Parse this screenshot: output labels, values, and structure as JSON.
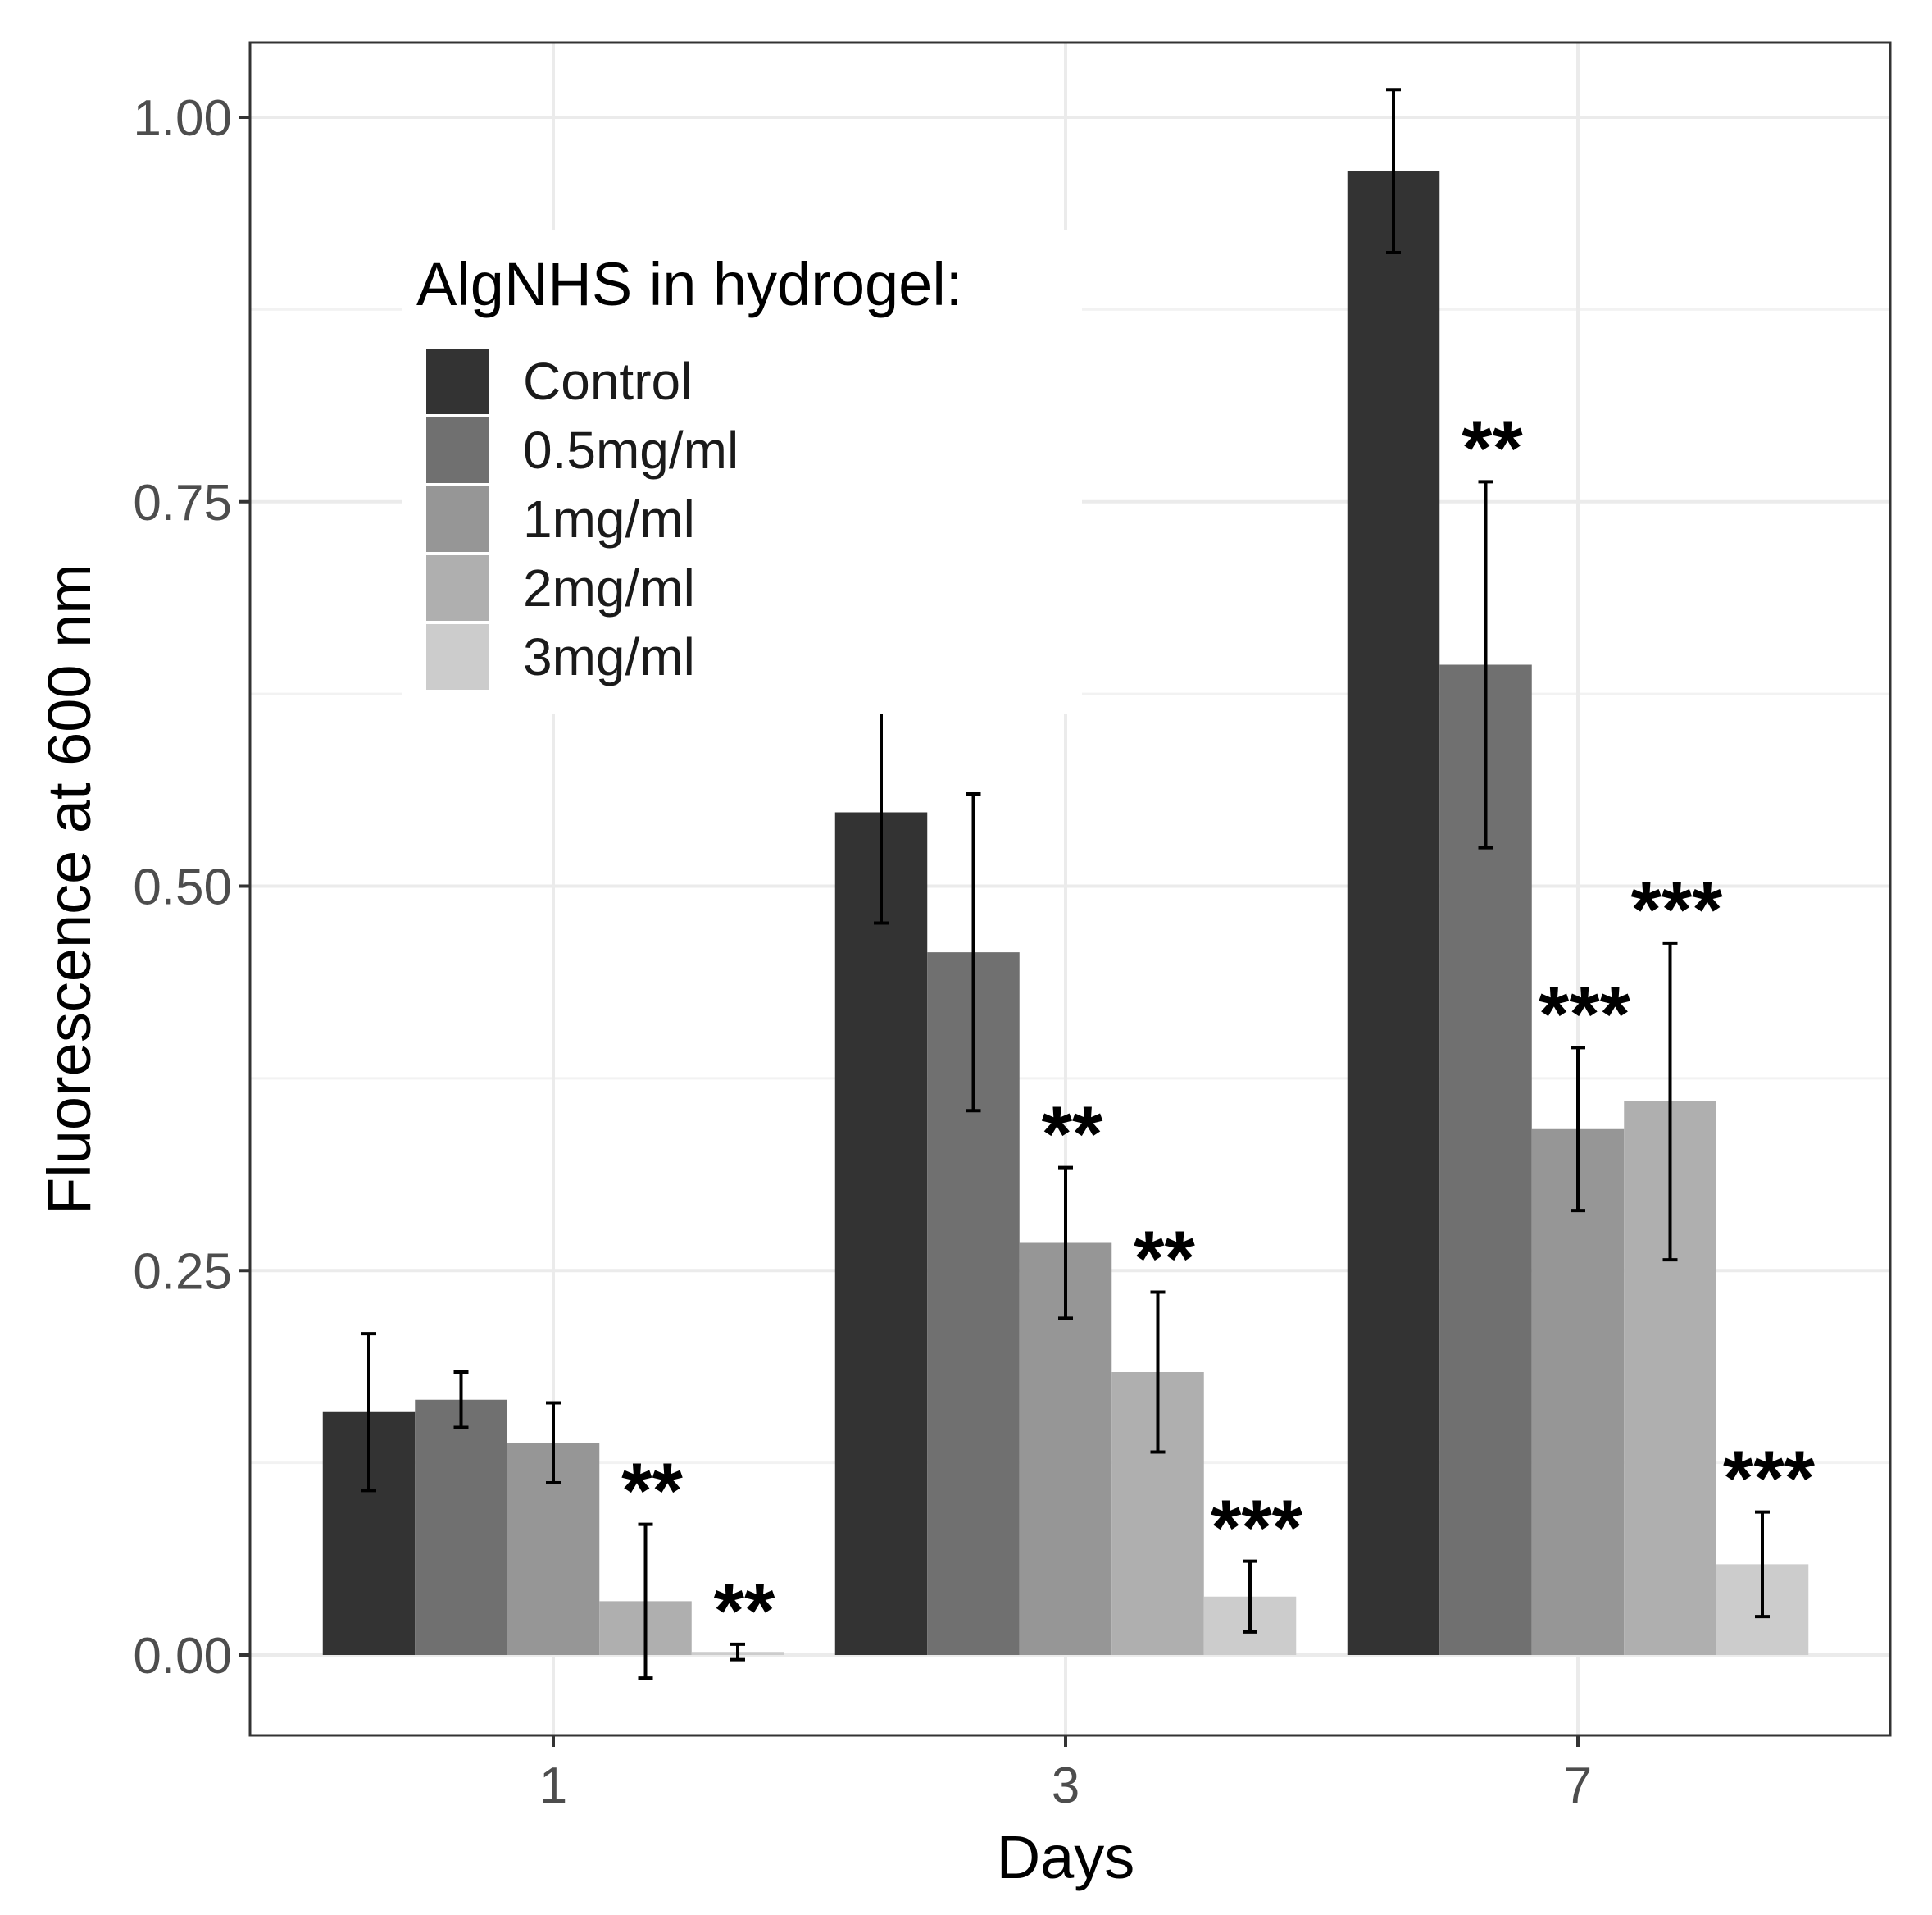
{
  "chart_data": {
    "type": "bar",
    "title": "",
    "xlabel": "Days",
    "ylabel": "Fluorescence at 600 nm",
    "categories": [
      "1",
      "3",
      "7"
    ],
    "ylim": [
      -0.05,
      1.05
    ],
    "yticks": [
      0.0,
      0.25,
      0.5,
      0.75,
      1.0
    ],
    "ytick_labels": [
      "0.00",
      "0.25",
      "0.50",
      "0.75",
      "1.00"
    ],
    "grid": true,
    "legend": {
      "title": "AlgNHS in hydrogel:",
      "position": "top-left"
    },
    "series": [
      {
        "name": "Control",
        "color": "#333333",
        "values": [
          0.158,
          0.548,
          0.965
        ],
        "errors": [
          0.051,
          0.072,
          0.053
        ],
        "significance": [
          "",
          "",
          ""
        ]
      },
      {
        "name": "0.5mg/ml",
        "color": "#707070",
        "values": [
          0.166,
          0.457,
          0.644
        ],
        "errors": [
          0.018,
          0.103,
          0.119
        ],
        "significance": [
          "",
          "",
          "**"
        ]
      },
      {
        "name": "1mg/ml",
        "color": "#969696",
        "values": [
          0.138,
          0.268,
          0.342
        ],
        "errors": [
          0.026,
          0.049,
          0.053
        ],
        "significance": [
          "",
          "**",
          "***"
        ]
      },
      {
        "name": "2mg/ml",
        "color": "#afafaf",
        "values": [
          0.035,
          0.184,
          0.36
        ],
        "errors": [
          0.05,
          0.052,
          0.103
        ],
        "significance": [
          "**",
          "**",
          "***"
        ]
      },
      {
        "name": "3mg/ml",
        "color": "#cccccc",
        "values": [
          0.002,
          0.038,
          0.059
        ],
        "errors": [
          0.005,
          0.023,
          0.034
        ],
        "significance": [
          "**",
          "***",
          "***"
        ]
      }
    ]
  }
}
